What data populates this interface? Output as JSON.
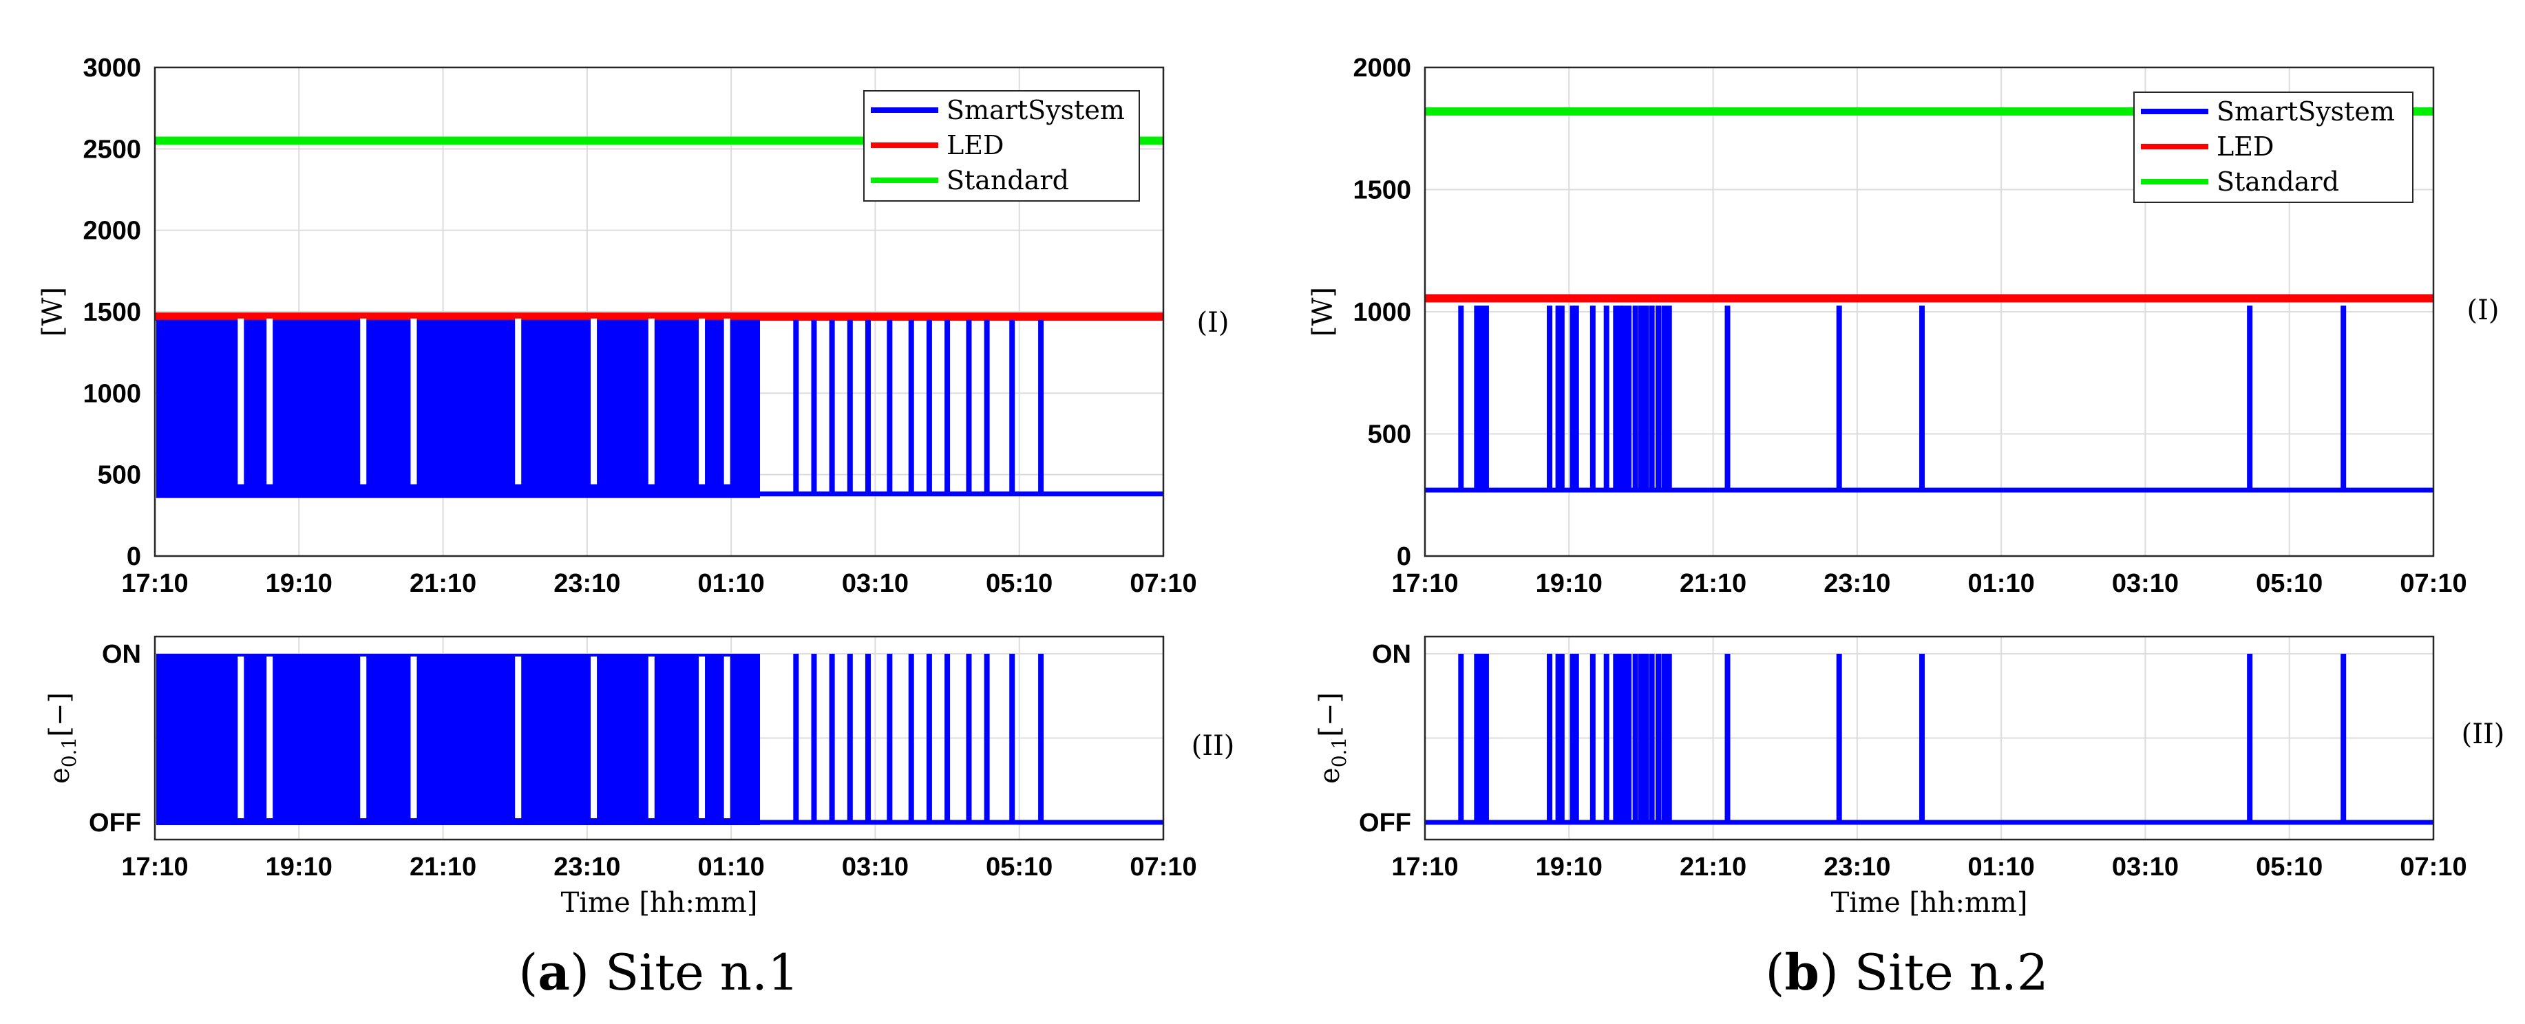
{
  "chart_data": [
    {
      "type": "line",
      "panel": "a",
      "caption_letter": "a",
      "caption_text": "Site n.1",
      "x_label": "Time [hh:mm]",
      "x_ticks": [
        "17:10",
        "19:10",
        "21:10",
        "23:10",
        "01:10",
        "03:10",
        "05:10",
        "07:10"
      ],
      "x_range_hours": [
        0,
        14
      ],
      "top": {
        "roman": "(I)",
        "ylabel": "[W]",
        "ylim": [
          0,
          3000
        ],
        "y_ticks": [
          0,
          500,
          1000,
          1500,
          2000,
          2500,
          3000
        ],
        "grid": true,
        "legend_position": "top-right",
        "series": [
          {
            "name": "SmartSystem",
            "color": "#0000ff",
            "base": 390,
            "peak": 1450,
            "dense_until_h": 8.4,
            "pulses_h": [
              8.9,
              9.15,
              9.4,
              9.65,
              9.9,
              10.2,
              10.5,
              10.75,
              11.0,
              11.3,
              11.55,
              11.9,
              12.3
            ]
          },
          {
            "name": "LED",
            "color": "#ff0000",
            "values": [
              1470,
              1470
            ]
          },
          {
            "name": "Standard",
            "color": "#00ee00",
            "values": [
              2550,
              2550
            ]
          }
        ]
      },
      "bottom": {
        "roman": "(II)",
        "ylabel_main": "e",
        "ylabel_sub": "0.1",
        "ylabel_unit": "[−]",
        "y_ticks": [
          "OFF",
          "ON"
        ],
        "series": [
          {
            "name": "SmartSystem",
            "color": "#0000ff",
            "states": "ON/OFF mirror of top panel"
          }
        ]
      }
    },
    {
      "type": "line",
      "panel": "b",
      "caption_letter": "b",
      "caption_text": "Site n.2",
      "x_label": "Time [hh:mm]",
      "x_ticks": [
        "17:10",
        "19:10",
        "21:10",
        "23:10",
        "01:10",
        "03:10",
        "05:10",
        "07:10"
      ],
      "x_range_hours": [
        0,
        14
      ],
      "top": {
        "roman": "(I)",
        "ylabel": "[W]",
        "ylim": [
          0,
          2000
        ],
        "y_ticks": [
          0,
          500,
          1000,
          1500,
          2000
        ],
        "grid": true,
        "legend_position": "top-right",
        "series": [
          {
            "name": "SmartSystem",
            "color": "#0000ff",
            "base": 270,
            "peak": 1025,
            "pulses_h": [
              0.5,
              0.72,
              0.78,
              0.85,
              1.73,
              1.85,
              1.9,
              2.05,
              2.1,
              2.33,
              2.52,
              2.65,
              2.71,
              2.76,
              2.83,
              2.92,
              3.0,
              3.07,
              3.15,
              3.24,
              3.32,
              3.39,
              4.2,
              5.75,
              6.9,
              11.45,
              12.75
            ]
          },
          {
            "name": "LED",
            "color": "#ff0000",
            "values": [
              1055,
              1055
            ]
          },
          {
            "name": "Standard",
            "color": "#00ee00",
            "values": [
              1820,
              1820
            ]
          }
        ]
      },
      "bottom": {
        "roman": "(II)",
        "ylabel_main": "e",
        "ylabel_sub": "0.1",
        "ylabel_unit": "[−]",
        "y_ticks": [
          "OFF",
          "ON"
        ],
        "series": [
          {
            "name": "SmartSystem",
            "color": "#0000ff",
            "states": "ON/OFF mirror of top panel"
          }
        ]
      }
    }
  ]
}
